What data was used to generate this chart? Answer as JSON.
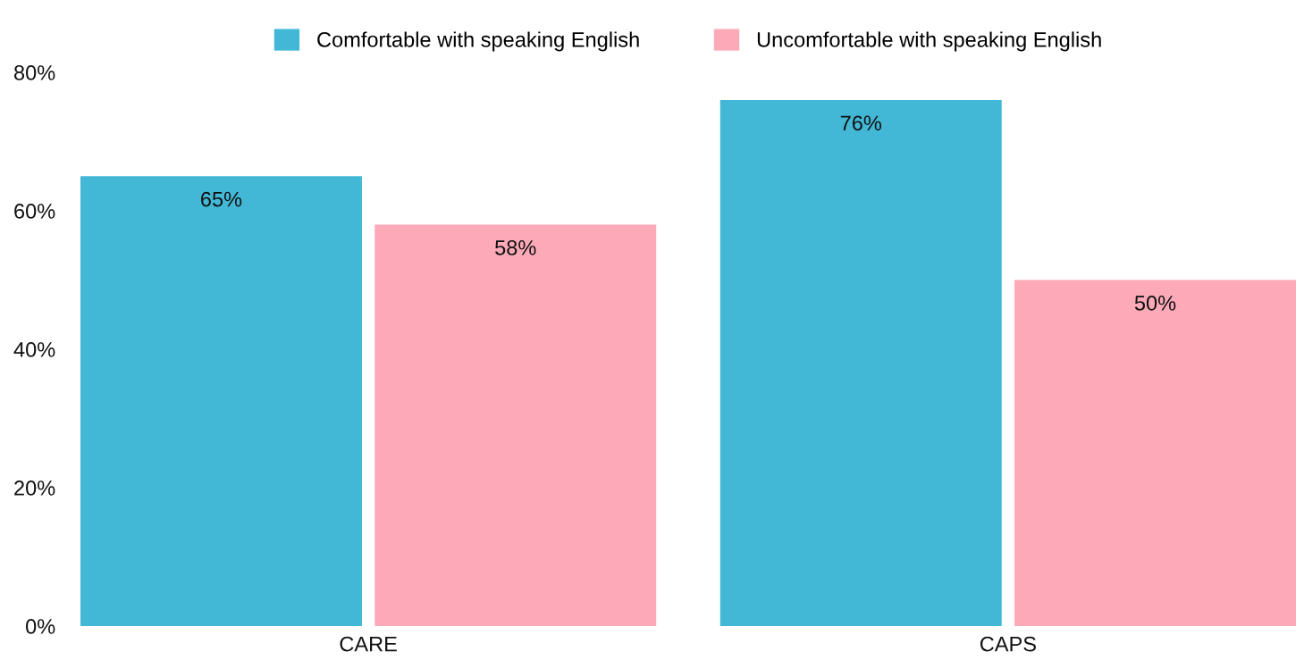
{
  "chart_data": {
    "type": "bar",
    "categories": [
      "CARE",
      "CAPS"
    ],
    "series": [
      {
        "name": "Comfortable with speaking English",
        "color": "#43b8d6",
        "values": [
          65,
          76
        ],
        "value_labels": [
          "65%",
          "76%"
        ]
      },
      {
        "name": "Uncomfortable with speaking English",
        "color": "#fdaab8",
        "values": [
          58,
          50
        ],
        "value_labels": [
          "58%",
          "50%"
        ]
      }
    ],
    "ylim": [
      0,
      80
    ],
    "yticks": [
      {
        "value": 0,
        "label": "0%"
      },
      {
        "value": 20,
        "label": "20%"
      },
      {
        "value": 40,
        "label": "40%"
      },
      {
        "value": 60,
        "label": "60%"
      },
      {
        "value": 80,
        "label": "80%"
      }
    ],
    "grid": false,
    "legend": "top"
  }
}
